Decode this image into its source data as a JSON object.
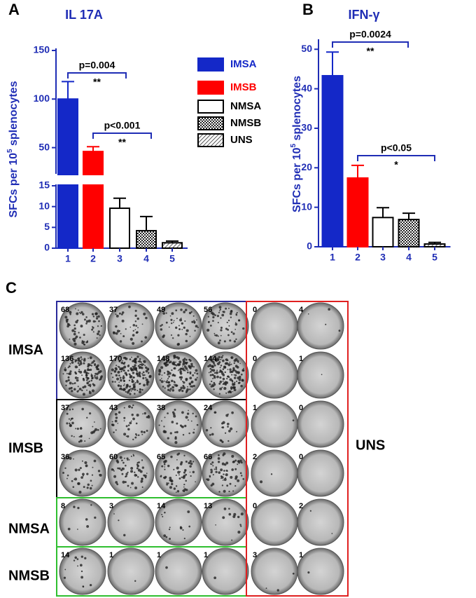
{
  "chart_data": [
    {
      "type": "bar",
      "panel": "A",
      "title": "IL 17A",
      "y_label": "SFCs per 10",
      "y_label_sup": "5",
      "y_label_end": " splenocytes",
      "categories": [
        "1",
        "2",
        "3",
        "4",
        "5"
      ],
      "values": [
        100,
        46,
        9.6,
        4.2,
        1.3
      ],
      "errors": [
        18,
        5,
        2.4,
        3.4,
        0.4
      ],
      "legend": [
        "IMSA",
        "IMSB",
        "NMSA",
        "NMSB",
        "UNS"
      ],
      "bar_fills": [
        "#1428c8",
        "#ff0000",
        "white",
        "checker",
        "hatch"
      ],
      "segments": [
        {
          "ylim": [
            0,
            15
          ],
          "yticks": [
            0,
            5,
            10,
            15
          ]
        },
        {
          "ylim": [
            23,
            150
          ],
          "yticks": [
            50,
            100,
            150
          ]
        }
      ],
      "annotations": [
        {
          "text": "p=0.004",
          "stars": "**"
        },
        {
          "text": "p<0.001",
          "stars": "**"
        }
      ]
    },
    {
      "type": "bar",
      "panel": "B",
      "title": "IFN-γ",
      "y_label": "SFCs per 10",
      "y_label_sup": "5",
      "y_label_end": " splenocytes",
      "categories": [
        "1",
        "2",
        "3",
        "4",
        "5"
      ],
      "values": [
        43.3,
        17.4,
        7.4,
        6.9,
        0.7
      ],
      "errors": [
        6,
        3.2,
        2.5,
        1.6,
        0.4
      ],
      "bar_fills": [
        "#1428c8",
        "#ff0000",
        "white",
        "checker",
        "hatch"
      ],
      "segments": [
        {
          "ylim": [
            0,
            52
          ],
          "yticks": [
            0,
            10,
            20,
            30,
            40,
            50
          ]
        }
      ],
      "annotations": [
        {
          "text": "p=0.0024",
          "stars": "**"
        },
        {
          "text": "p<0.05",
          "stars": "*"
        }
      ]
    }
  ],
  "panel_c": {
    "label": "C",
    "groups": [
      "IMSA",
      "IMSB",
      "NMSA",
      "NMSB"
    ],
    "control": "UNS",
    "rows": [
      {
        "counts": [
          68,
          37,
          49,
          56
        ],
        "control_counts": [
          0,
          4
        ]
      },
      {
        "counts": [
          136,
          170,
          148,
          144
        ],
        "control_counts": [
          0,
          1
        ]
      },
      {
        "counts": [
          37,
          43,
          38,
          24
        ],
        "control_counts": [
          1,
          0
        ]
      },
      {
        "counts": [
          36,
          60,
          65,
          66
        ],
        "control_counts": [
          2,
          0
        ]
      },
      {
        "counts": [
          8,
          3,
          14,
          13
        ],
        "control_counts": [
          0,
          2
        ]
      },
      {
        "counts": [
          14,
          1,
          1,
          1
        ],
        "control_counts": [
          3,
          1
        ]
      }
    ]
  }
}
